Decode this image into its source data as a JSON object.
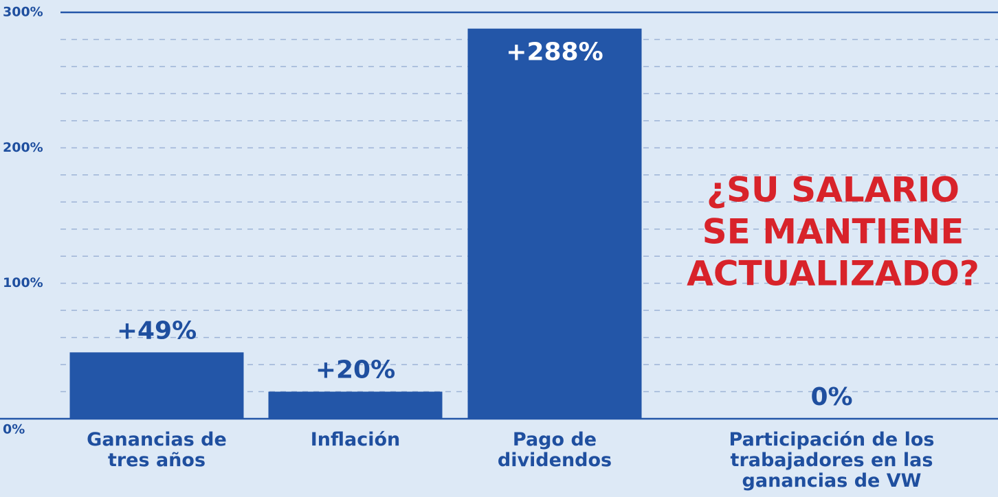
{
  "chart_data": {
    "type": "bar",
    "categories": [
      "Ganancias de tres años",
      "Inflación",
      "Pago de dividendos",
      "Participación de los trabajadores en las ganancias de VW"
    ],
    "values": [
      49,
      20,
      288,
      0
    ],
    "value_labels": [
      "+49%",
      "+20%",
      "+288%",
      "0%"
    ],
    "color": "#2356a8",
    "ylim": [
      0,
      300
    ],
    "yticks": [
      {
        "value": 0,
        "label": "0%"
      },
      {
        "value": 100,
        "label": "100%"
      },
      {
        "value": 200,
        "label": "200%"
      },
      {
        "value": 300,
        "label": "300%"
      }
    ],
    "minor_yticks": [
      20,
      40,
      60,
      80,
      120,
      140,
      160,
      180,
      220,
      240,
      260,
      280
    ],
    "grid": true,
    "annotation": [
      "¿SU SALARIO",
      "SE MANTIENE",
      "ACTUALIZADO?"
    ],
    "annotation_color": "#d8232a"
  }
}
